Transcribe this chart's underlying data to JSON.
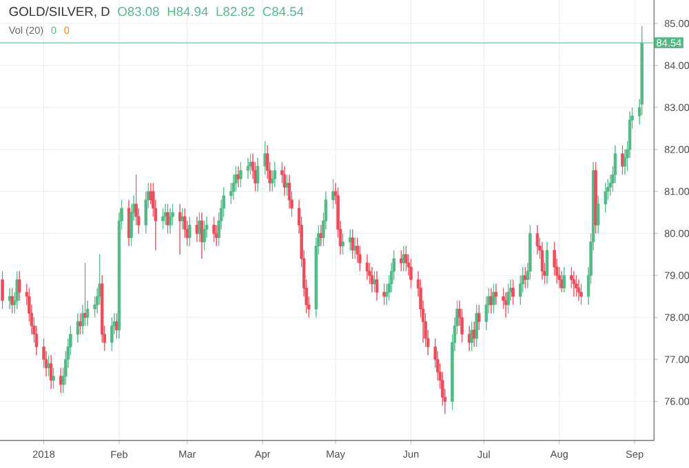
{
  "chart_data": {
    "type": "candlestick",
    "title": "GOLD/SILVER, D",
    "annotations": [
      "O83.08",
      "H84.94",
      "L82.82",
      "C84.54",
      "Vol (20)",
      "0",
      "0"
    ],
    "x": [
      "2017-12-15",
      "2017-12-18",
      "2017-12-19",
      "2017-12-20",
      "2017-12-21",
      "2017-12-22",
      "2017-12-25",
      "2017-12-26",
      "2017-12-27",
      "2017-12-28",
      "2017-12-29",
      "2018-01-01",
      "2018-01-02",
      "2018-01-03",
      "2018-01-04",
      "2018-01-05",
      "2018-01-08",
      "2018-01-09",
      "2018-01-10",
      "2018-01-11",
      "2018-01-12",
      "2018-01-15",
      "2018-01-16",
      "2018-01-17",
      "2018-01-18",
      "2018-01-19",
      "2018-01-22",
      "2018-01-23",
      "2018-01-24",
      "2018-01-25",
      "2018-01-26",
      "2018-01-29",
      "2018-01-30",
      "2018-01-31",
      "2018-02-01",
      "2018-02-02",
      "2018-02-05",
      "2018-02-06",
      "2018-02-07",
      "2018-02-08",
      "2018-02-09",
      "2018-02-12",
      "2018-02-13",
      "2018-02-14",
      "2018-02-15",
      "2018-02-16",
      "2018-02-19",
      "2018-02-20",
      "2018-02-21",
      "2018-02-22",
      "2018-02-23",
      "2018-02-26",
      "2018-02-27",
      "2018-02-28",
      "2018-03-01",
      "2018-03-02",
      "2018-03-05",
      "2018-03-06",
      "2018-03-07",
      "2018-03-08",
      "2018-03-09",
      "2018-03-12",
      "2018-03-13",
      "2018-03-14",
      "2018-03-15",
      "2018-03-16",
      "2018-03-19",
      "2018-03-20",
      "2018-03-21",
      "2018-03-22",
      "2018-03-23",
      "2018-03-26",
      "2018-03-27",
      "2018-03-28",
      "2018-03-29",
      "2018-03-30",
      "2018-04-02",
      "2018-04-03",
      "2018-04-04",
      "2018-04-05",
      "2018-04-06",
      "2018-04-09",
      "2018-04-10",
      "2018-04-11",
      "2018-04-12",
      "2018-04-13",
      "2018-04-16",
      "2018-04-17",
      "2018-04-18",
      "2018-04-19",
      "2018-04-20",
      "2018-04-23",
      "2018-04-24",
      "2018-04-25",
      "2018-04-26",
      "2018-04-27",
      "2018-04-30",
      "2018-05-01",
      "2018-05-02",
      "2018-05-03",
      "2018-05-04",
      "2018-05-07",
      "2018-05-08",
      "2018-05-09",
      "2018-05-10",
      "2018-05-11",
      "2018-05-14",
      "2018-05-15",
      "2018-05-16",
      "2018-05-17",
      "2018-05-18",
      "2018-05-21",
      "2018-05-22",
      "2018-05-23",
      "2018-05-24",
      "2018-05-25",
      "2018-05-28",
      "2018-05-29",
      "2018-05-30",
      "2018-05-31",
      "2018-06-01",
      "2018-06-04",
      "2018-06-05",
      "2018-06-06",
      "2018-06-07",
      "2018-06-08",
      "2018-06-11",
      "2018-06-12",
      "2018-06-13",
      "2018-06-14",
      "2018-06-15",
      "2018-06-18",
      "2018-06-19",
      "2018-06-20",
      "2018-06-21",
      "2018-06-22",
      "2018-06-25",
      "2018-06-26",
      "2018-06-27",
      "2018-06-28",
      "2018-06-29",
      "2018-07-02",
      "2018-07-03",
      "2018-07-04",
      "2018-07-05",
      "2018-07-06",
      "2018-07-09",
      "2018-07-10",
      "2018-07-11",
      "2018-07-12",
      "2018-07-13",
      "2018-07-16",
      "2018-07-17",
      "2018-07-18",
      "2018-07-19",
      "2018-07-20",
      "2018-07-23",
      "2018-07-24",
      "2018-07-25",
      "2018-07-26",
      "2018-07-27",
      "2018-07-30",
      "2018-07-31",
      "2018-08-01",
      "2018-08-02",
      "2018-08-03",
      "2018-08-06",
      "2018-08-07",
      "2018-08-08",
      "2018-08-09",
      "2018-08-10",
      "2018-08-13",
      "2018-08-14",
      "2018-08-15",
      "2018-08-16",
      "2018-08-17",
      "2018-08-20",
      "2018-08-21",
      "2018-08-22",
      "2018-08-23",
      "2018-08-24",
      "2018-08-27",
      "2018-08-28",
      "2018-08-29",
      "2018-08-30",
      "2018-08-31",
      "2018-09-03",
      "2018-09-04"
    ],
    "ohlc": [
      [
        78.9,
        79.1,
        78.2,
        78.4
      ],
      [
        78.4,
        78.7,
        78.2,
        78.5
      ],
      [
        78.5,
        78.7,
        78.1,
        78.3
      ],
      [
        78.3,
        78.6,
        78.1,
        78.4
      ],
      [
        78.4,
        79.1,
        78.2,
        78.9
      ],
      [
        78.9,
        79.1,
        78.4,
        78.6
      ],
      [
        78.6,
        78.8,
        78.3,
        78.5
      ],
      [
        78.5,
        78.7,
        77.9,
        78.1
      ],
      [
        78.1,
        78.3,
        77.6,
        77.8
      ],
      [
        77.8,
        78.0,
        77.4,
        77.6
      ],
      [
        77.6,
        77.8,
        77.1,
        77.3
      ],
      [
        77.3,
        77.5,
        76.8,
        77.0
      ],
      [
        77.0,
        77.2,
        76.6,
        76.8
      ],
      [
        76.8,
        77.1,
        76.6,
        76.9
      ],
      [
        76.9,
        77.1,
        76.3,
        76.5
      ],
      [
        76.5,
        76.8,
        76.3,
        76.6
      ],
      [
        76.6,
        76.8,
        76.2,
        76.4
      ],
      [
        76.4,
        76.8,
        76.2,
        76.6
      ],
      [
        76.6,
        77.2,
        76.4,
        77.0
      ],
      [
        77.0,
        77.5,
        76.8,
        77.3
      ],
      [
        77.3,
        77.8,
        77.1,
        77.6
      ],
      [
        77.6,
        78.1,
        77.4,
        77.9
      ],
      [
        77.9,
        78.1,
        77.6,
        77.8
      ],
      [
        77.8,
        78.3,
        77.6,
        78.1
      ],
      [
        78.1,
        79.3,
        77.8,
        78.0
      ],
      [
        78.0,
        78.4,
        77.8,
        78.2
      ],
      [
        78.2,
        78.5,
        78.0,
        78.3
      ],
      [
        78.3,
        78.7,
        78.1,
        78.5
      ],
      [
        78.5,
        79.5,
        78.3,
        78.8
      ],
      [
        78.8,
        79.0,
        77.4,
        77.6
      ],
      [
        77.6,
        77.8,
        77.2,
        77.4
      ],
      [
        77.4,
        78.0,
        77.2,
        77.8
      ],
      [
        77.8,
        78.1,
        77.6,
        77.9
      ],
      [
        77.9,
        78.1,
        77.5,
        77.7
      ],
      [
        77.7,
        80.5,
        77.5,
        80.3
      ],
      [
        80.3,
        80.8,
        80.1,
        80.6
      ],
      [
        80.6,
        80.8,
        79.7,
        79.9
      ],
      [
        79.9,
        80.7,
        79.7,
        80.5
      ],
      [
        80.5,
        80.9,
        80.3,
        80.7
      ],
      [
        80.7,
        81.4,
        80.2,
        80.4
      ],
      [
        80.4,
        80.6,
        80.0,
        80.2
      ],
      [
        80.2,
        81.0,
        80.0,
        80.8
      ],
      [
        80.8,
        81.2,
        80.6,
        81.0
      ],
      [
        81.0,
        81.2,
        80.7,
        80.8
      ],
      [
        81.0,
        81.2,
        80.4,
        80.6
      ],
      [
        80.6,
        80.8,
        79.6,
        80.3
      ],
      [
        80.3,
        80.6,
        80.1,
        80.4
      ],
      [
        80.4,
        80.7,
        80.2,
        80.5
      ],
      [
        80.5,
        80.7,
        80.0,
        80.2
      ],
      [
        80.2,
        80.6,
        80.0,
        80.4
      ],
      [
        80.4,
        80.7,
        80.2,
        80.5
      ],
      [
        80.5,
        80.7,
        79.5,
        80.3
      ],
      [
        80.3,
        80.6,
        80.1,
        80.4
      ],
      [
        80.4,
        80.6,
        79.9,
        80.1
      ],
      [
        80.1,
        80.3,
        79.7,
        79.9
      ],
      [
        79.9,
        80.4,
        79.7,
        80.2
      ],
      [
        80.2,
        80.4,
        79.8,
        80.0
      ],
      [
        80.0,
        80.5,
        79.8,
        80.3
      ],
      [
        80.3,
        80.5,
        79.4,
        79.8
      ],
      [
        79.8,
        80.3,
        79.6,
        80.1
      ],
      [
        80.1,
        80.4,
        79.9,
        80.2
      ],
      [
        80.2,
        80.4,
        79.8,
        80.0
      ],
      [
        80.0,
        80.2,
        79.7,
        79.9
      ],
      [
        79.9,
        80.5,
        79.7,
        80.3
      ],
      [
        80.3,
        80.8,
        80.1,
        80.6
      ],
      [
        80.6,
        81.1,
        80.4,
        80.9
      ],
      [
        80.9,
        81.2,
        80.7,
        81.0
      ],
      [
        81.0,
        81.4,
        80.8,
        81.2
      ],
      [
        81.2,
        81.6,
        81.0,
        81.4
      ],
      [
        81.4,
        81.6,
        81.1,
        81.3
      ],
      [
        81.3,
        81.7,
        81.1,
        81.5
      ],
      [
        81.5,
        81.8,
        81.3,
        81.6
      ],
      [
        81.6,
        81.9,
        81.4,
        81.7
      ],
      [
        81.7,
        81.9,
        81.3,
        81.5
      ],
      [
        81.5,
        81.7,
        81.0,
        81.2
      ],
      [
        81.2,
        81.8,
        81.0,
        81.6
      ],
      [
        81.6,
        82.2,
        81.4,
        81.9
      ],
      [
        81.9,
        82.1,
        81.3,
        81.5
      ],
      [
        81.5,
        81.7,
        81.0,
        81.2
      ],
      [
        81.2,
        81.5,
        81.0,
        81.3
      ],
      [
        81.3,
        81.7,
        81.1,
        81.5
      ],
      [
        81.5,
        81.7,
        81.2,
        81.4
      ],
      [
        81.4,
        81.6,
        80.9,
        81.1
      ],
      [
        81.1,
        81.4,
        80.9,
        81.2
      ],
      [
        81.2,
        81.4,
        80.6,
        80.8
      ],
      [
        80.8,
        81.0,
        80.4,
        80.6
      ],
      [
        80.6,
        80.8,
        80.0,
        80.2
      ],
      [
        80.2,
        80.4,
        79.2,
        79.4
      ],
      [
        79.4,
        79.6,
        78.5,
        78.7
      ],
      [
        78.7,
        78.9,
        78.1,
        78.3
      ],
      [
        78.3,
        78.5,
        78.0,
        78.2
      ],
      [
        78.2,
        79.9,
        78.0,
        79.7
      ],
      [
        79.7,
        80.2,
        79.5,
        80.0
      ],
      [
        80.0,
        80.2,
        79.7,
        79.9
      ],
      [
        79.9,
        80.5,
        79.7,
        80.3
      ],
      [
        80.3,
        81.0,
        80.1,
        80.8
      ],
      [
        80.8,
        81.3,
        80.6,
        81.0
      ],
      [
        81.0,
        81.2,
        80.7,
        80.9
      ],
      [
        80.9,
        81.1,
        79.9,
        80.1
      ],
      [
        80.1,
        80.3,
        79.5,
        79.7
      ],
      [
        79.7,
        80.0,
        79.5,
        79.8
      ],
      [
        79.8,
        80.1,
        79.6,
        79.9
      ],
      [
        79.9,
        80.1,
        79.4,
        79.6
      ],
      [
        79.6,
        79.9,
        79.4,
        79.7
      ],
      [
        79.7,
        79.9,
        79.3,
        79.5
      ],
      [
        79.5,
        79.7,
        79.1,
        79.3
      ],
      [
        79.3,
        79.5,
        78.9,
        79.1
      ],
      [
        79.1,
        79.3,
        78.8,
        79.0
      ],
      [
        79.0,
        79.2,
        78.6,
        78.8
      ],
      [
        78.8,
        79.1,
        78.6,
        78.9
      ],
      [
        78.9,
        79.1,
        78.4,
        78.6
      ],
      [
        78.6,
        78.8,
        78.3,
        78.5
      ],
      [
        78.5,
        78.8,
        78.3,
        78.6
      ],
      [
        78.6,
        79.0,
        78.4,
        78.8
      ],
      [
        78.8,
        79.3,
        78.6,
        79.1
      ],
      [
        79.1,
        79.6,
        78.9,
        79.4
      ],
      [
        79.4,
        79.6,
        79.1,
        79.3
      ],
      [
        79.3,
        79.7,
        79.1,
        79.5
      ],
      [
        79.5,
        79.7,
        79.1,
        79.3
      ],
      [
        79.3,
        79.5,
        79.0,
        79.2
      ],
      [
        79.2,
        79.4,
        78.7,
        78.9
      ],
      [
        78.9,
        79.1,
        78.5,
        78.7
      ],
      [
        78.7,
        78.9,
        78.0,
        78.2
      ],
      [
        78.2,
        78.4,
        77.4,
        77.9
      ],
      [
        77.9,
        78.1,
        77.3,
        77.5
      ],
      [
        77.5,
        77.7,
        77.1,
        77.3
      ],
      [
        77.3,
        77.5,
        76.8,
        77.0
      ],
      [
        77.0,
        77.2,
        76.5,
        76.7
      ],
      [
        76.7,
        76.9,
        76.3,
        76.5
      ],
      [
        76.5,
        76.7,
        75.9,
        76.1
      ],
      [
        76.1,
        76.3,
        75.7,
        76.0
      ],
      [
        76.0,
        77.6,
        75.8,
        77.4
      ],
      [
        77.4,
        78.0,
        77.2,
        77.8
      ],
      [
        77.8,
        78.4,
        77.6,
        78.2
      ],
      [
        78.2,
        78.4,
        77.8,
        78.0
      ],
      [
        78.0,
        78.2,
        77.4,
        77.6
      ],
      [
        77.6,
        77.8,
        77.2,
        77.4
      ],
      [
        77.4,
        77.9,
        77.2,
        77.7
      ],
      [
        77.7,
        77.9,
        77.3,
        77.5
      ],
      [
        77.5,
        78.3,
        77.3,
        78.1
      ],
      [
        78.1,
        78.3,
        77.7,
        77.9
      ],
      [
        77.9,
        78.5,
        77.7,
        78.3
      ],
      [
        78.3,
        78.7,
        78.1,
        78.5
      ],
      [
        78.5,
        78.7,
        78.1,
        78.3
      ],
      [
        78.3,
        78.8,
        78.1,
        78.6
      ],
      [
        78.6,
        78.8,
        78.3,
        78.5
      ],
      [
        78.5,
        78.7,
        78.2,
        78.4
      ],
      [
        78.4,
        78.6,
        78.0,
        78.3
      ],
      [
        78.3,
        78.8,
        78.1,
        78.6
      ],
      [
        78.6,
        78.9,
        78.4,
        78.7
      ],
      [
        78.7,
        78.9,
        78.3,
        78.5
      ],
      [
        78.5,
        79.0,
        78.3,
        78.8
      ],
      [
        78.8,
        79.2,
        78.6,
        79.0
      ],
      [
        79.0,
        79.2,
        78.7,
        78.9
      ],
      [
        78.9,
        79.3,
        78.7,
        79.1
      ],
      [
        79.1,
        80.2,
        78.9,
        80.0
      ],
      [
        80.0,
        80.2,
        79.5,
        79.7
      ],
      [
        79.7,
        79.9,
        79.4,
        79.6
      ],
      [
        79.6,
        79.8,
        78.9,
        79.1
      ],
      [
        79.1,
        79.3,
        78.8,
        79.0
      ],
      [
        79.0,
        79.8,
        78.8,
        79.6
      ],
      [
        79.6,
        79.8,
        79.0,
        79.2
      ],
      [
        79.2,
        79.4,
        78.8,
        79.0
      ],
      [
        79.0,
        79.2,
        78.7,
        78.9
      ],
      [
        78.9,
        79.1,
        78.6,
        78.7
      ],
      [
        78.7,
        79.2,
        78.6,
        79.0
      ],
      [
        79.0,
        79.2,
        78.7,
        78.9
      ],
      [
        78.9,
        79.1,
        78.5,
        78.8
      ],
      [
        78.8,
        79.0,
        78.5,
        78.7
      ],
      [
        78.7,
        78.9,
        78.4,
        78.6
      ],
      [
        78.6,
        78.8,
        78.3,
        78.5
      ],
      [
        78.5,
        79.2,
        78.3,
        79.0
      ],
      [
        79.0,
        80.0,
        78.8,
        79.8
      ],
      [
        79.8,
        81.7,
        79.6,
        81.5
      ],
      [
        81.5,
        81.7,
        80.0,
        80.2
      ],
      [
        80.2,
        80.9,
        80.0,
        80.7
      ],
      [
        80.7,
        81.2,
        80.5,
        81.0
      ],
      [
        81.0,
        81.3,
        80.8,
        81.1
      ],
      [
        81.1,
        81.4,
        80.9,
        81.2
      ],
      [
        81.2,
        81.6,
        81.0,
        81.4
      ],
      [
        81.4,
        82.1,
        81.2,
        81.9
      ],
      [
        81.9,
        82.1,
        81.4,
        81.6
      ],
      [
        81.6,
        82.0,
        81.4,
        81.8
      ],
      [
        81.8,
        82.2,
        81.5,
        82.0
      ],
      [
        82.0,
        82.9,
        81.8,
        82.7
      ],
      [
        82.7,
        83.0,
        82.5,
        82.8
      ],
      [
        82.8,
        83.2,
        82.6,
        83.0
      ],
      [
        83.08,
        84.94,
        82.82,
        84.54
      ]
    ],
    "xlim": [
      "2017-12-14",
      "2018-09-09"
    ],
    "xticks": [
      {
        "value": "2018-01-01",
        "label": "2018"
      },
      {
        "value": "2018-02-01",
        "label": "Feb"
      },
      {
        "value": "2018-03-01",
        "label": "Mar"
      },
      {
        "value": "2018-04-01",
        "label": "Apr"
      },
      {
        "value": "2018-05-01",
        "label": "May"
      },
      {
        "value": "2018-06-01",
        "label": "Jun"
      },
      {
        "value": "2018-07-01",
        "label": "Jul"
      },
      {
        "value": "2018-08-01",
        "label": "Aug"
      },
      {
        "value": "2018-09-01",
        "label": "Sep"
      }
    ],
    "ylim": [
      75.07,
      85.56
    ],
    "yticks": [
      {
        "value": 76,
        "label": "76.00"
      },
      {
        "value": 77,
        "label": "77.00"
      },
      {
        "value": 78,
        "label": "78.00"
      },
      {
        "value": 79,
        "label": "79.00"
      },
      {
        "value": 80,
        "label": "80.00"
      },
      {
        "value": 81,
        "label": "81.00"
      },
      {
        "value": 82,
        "label": "82.00"
      },
      {
        "value": 83,
        "label": "83.00"
      },
      {
        "value": 84,
        "label": "84.00"
      },
      {
        "value": 85,
        "label": "85.00"
      }
    ],
    "ref_lines": [
      {
        "axis": "y",
        "value": 84.54,
        "label": "84.54",
        "color": "#53b987"
      }
    ],
    "grid": true
  }
}
